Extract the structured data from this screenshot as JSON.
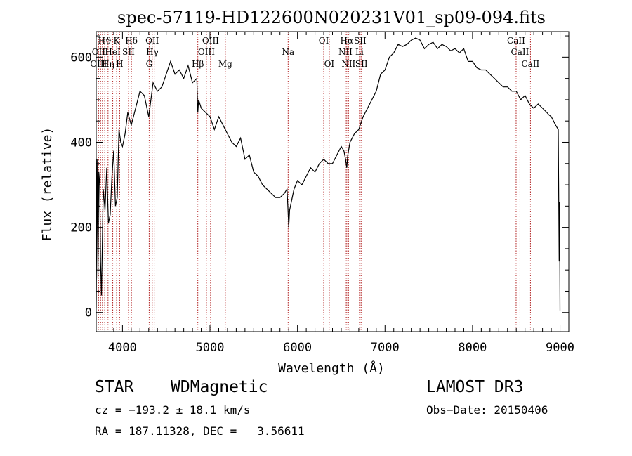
{
  "chart_data": {
    "type": "line",
    "title": "spec-57119-HD122600N020231V01_sp09-094.fits",
    "xlabel": "Wavelength (Å)",
    "ylabel": "Flux (relative)",
    "xlim": [
      3700,
      9100
    ],
    "ylim": [
      -45,
      660
    ],
    "xticks": [
      4000,
      5000,
      6000,
      7000,
      8000,
      9000
    ],
    "yticks": [
      0,
      200,
      400,
      600
    ],
    "grid": false,
    "series": [
      {
        "name": "flux",
        "x": [
          3700,
          3710,
          3720,
          3730,
          3740,
          3750,
          3760,
          3780,
          3800,
          3820,
          3840,
          3860,
          3880,
          3900,
          3920,
          3940,
          3960,
          3980,
          4000,
          4030,
          4060,
          4100,
          4150,
          4200,
          4250,
          4300,
          4350,
          4400,
          4450,
          4500,
          4550,
          4600,
          4650,
          4700,
          4750,
          4800,
          4850,
          4861,
          4870,
          4900,
          4950,
          5000,
          5050,
          5100,
          5150,
          5200,
          5250,
          5300,
          5350,
          5400,
          5450,
          5500,
          5550,
          5600,
          5650,
          5700,
          5750,
          5800,
          5850,
          5880,
          5890,
          5900,
          5910,
          5930,
          5960,
          6000,
          6050,
          6100,
          6150,
          6200,
          6250,
          6300,
          6350,
          6400,
          6450,
          6500,
          6530,
          6550,
          6563,
          6575,
          6600,
          6650,
          6700,
          6750,
          6800,
          6850,
          6900,
          6950,
          7000,
          7050,
          7100,
          7150,
          7200,
          7250,
          7300,
          7350,
          7400,
          7450,
          7500,
          7550,
          7600,
          7650,
          7700,
          7750,
          7800,
          7850,
          7900,
          7950,
          8000,
          8050,
          8100,
          8150,
          8200,
          8250,
          8300,
          8350,
          8400,
          8450,
          8500,
          8550,
          8600,
          8650,
          8700,
          8750,
          8800,
          8850,
          8870,
          8900,
          8950,
          8980,
          8990,
          8995,
          9000
        ],
        "values": [
          10,
          360,
          80,
          330,
          300,
          120,
          40,
          290,
          240,
          340,
          210,
          230,
          320,
          380,
          250,
          270,
          430,
          400,
          390,
          420,
          470,
          440,
          480,
          520,
          510,
          460,
          540,
          520,
          530,
          560,
          590,
          560,
          570,
          550,
          580,
          540,
          550,
          470,
          500,
          480,
          470,
          460,
          430,
          460,
          440,
          420,
          400,
          390,
          410,
          360,
          370,
          330,
          320,
          300,
          290,
          280,
          270,
          270,
          280,
          290,
          250,
          200,
          240,
          260,
          290,
          310,
          300,
          320,
          340,
          330,
          350,
          360,
          350,
          350,
          370,
          390,
          380,
          360,
          340,
          370,
          400,
          420,
          430,
          460,
          480,
          500,
          520,
          560,
          570,
          600,
          610,
          630,
          625,
          630,
          640,
          645,
          640,
          620,
          630,
          635,
          620,
          630,
          625,
          615,
          620,
          610,
          620,
          590,
          590,
          575,
          570,
          570,
          560,
          550,
          540,
          530,
          530,
          520,
          520,
          500,
          510,
          490,
          480,
          490,
          480,
          470,
          465,
          460,
          440,
          430,
          120,
          260,
          5
        ]
      }
    ],
    "annotations": [
      {
        "label": "Hϑ",
        "wavelength": 3797,
        "row": 1
      },
      {
        "label": "K",
        "wavelength": 3933,
        "row": 1
      },
      {
        "label": "Hδ",
        "wavelength": 4102,
        "row": 1
      },
      {
        "label": "OII",
        "wavelength": 4340,
        "row": 1
      },
      {
        "label": "OIII",
        "wavelength": 5007,
        "row": 1
      },
      {
        "label": "OI",
        "wavelength": 6300,
        "row": 1
      },
      {
        "label": "Hα",
        "wavelength": 6563,
        "row": 1
      },
      {
        "label": "SII",
        "wavelength": 6716,
        "row": 1
      },
      {
        "label": "CaII",
        "wavelength": 8498,
        "row": 1
      },
      {
        "label": "OII",
        "wavelength": 3727,
        "row": 2
      },
      {
        "label": "HeI",
        "wavelength": 3889,
        "row": 2
      },
      {
        "label": "SII",
        "wavelength": 4069,
        "row": 2
      },
      {
        "label": "Hγ",
        "wavelength": 4341,
        "row": 2
      },
      {
        "label": "OIII",
        "wavelength": 4959,
        "row": 2
      },
      {
        "label": "Na",
        "wavelength": 5893,
        "row": 2
      },
      {
        "label": "NII",
        "wavelength": 6548,
        "row": 2
      },
      {
        "label": "Li",
        "wavelength": 6708,
        "row": 2
      },
      {
        "label": "CaII",
        "wavelength": 8542,
        "row": 2
      },
      {
        "label": "OIII",
        "wavelength": 3727,
        "row": 3
      },
      {
        "label": "Hη",
        "wavelength": 3835,
        "row": 3
      },
      {
        "label": "H",
        "wavelength": 3968,
        "row": 3
      },
      {
        "label": "G",
        "wavelength": 4305,
        "row": 3
      },
      {
        "label": "Hβ",
        "wavelength": 4861,
        "row": 3
      },
      {
        "label": "Mg",
        "wavelength": 5175,
        "row": 3
      },
      {
        "label": "OI",
        "wavelength": 6363,
        "row": 3
      },
      {
        "label": "NII",
        "wavelength": 6583,
        "row": 3
      },
      {
        "label": "SII",
        "wavelength": 6731,
        "row": 3
      },
      {
        "label": "CaII",
        "wavelength": 8662,
        "row": 3
      }
    ],
    "line_markers": [
      3727,
      3750,
      3771,
      3797,
      3835,
      3889,
      3933,
      3968,
      4069,
      4102,
      4305,
      4340,
      4363,
      4861,
      4959,
      5007,
      5175,
      5893,
      6300,
      6363,
      6548,
      6563,
      6583,
      6708,
      6716,
      6731,
      8498,
      8542,
      8662
    ],
    "colors": {
      "line": "#000000",
      "marker": "#b22222",
      "axis": "#000000"
    }
  },
  "footer": {
    "object_class": "STAR",
    "subclass": "WDMagnetic",
    "survey": "LAMOST DR3",
    "redshift": "cz = −193.2 ± 18.1 km/s",
    "obs_date": "Obs−Date: 20150406",
    "coords": "RA = 187.11328, DEC =   3.56611"
  }
}
